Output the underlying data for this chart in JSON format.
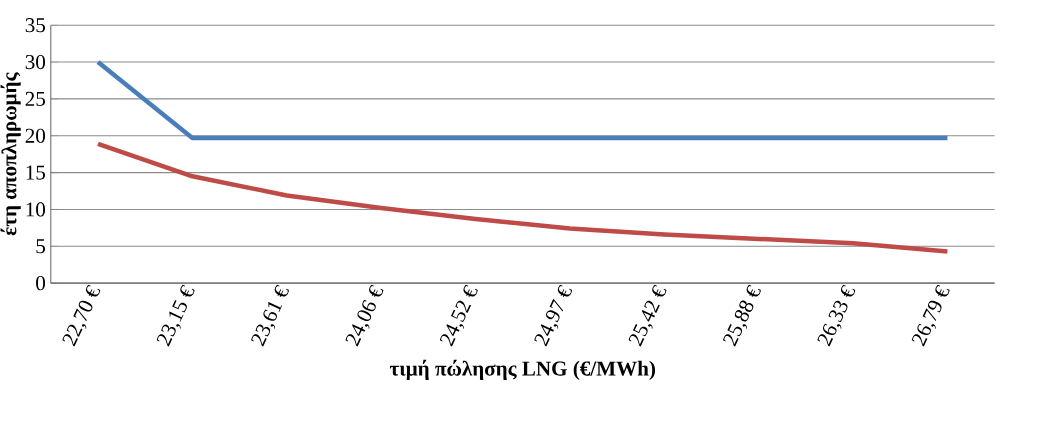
{
  "chart_data": {
    "type": "line",
    "xlabel": "τιμή πώλησης LNG (€/MWh)",
    "ylabel": "έτη αποπληρωμής",
    "categories": [
      "22,70 €",
      "23,15 €",
      "23,61 €",
      "24,06 €",
      "24,52 €",
      "24,97 €",
      "25,42 €",
      "25,88 €",
      "26,33 €",
      "26,79 €"
    ],
    "series": [
      {
        "color": "#4a7ebb",
        "values": [
          30,
          19.7,
          19.7,
          19.7,
          19.7,
          19.7,
          19.7,
          19.7,
          19.7,
          19.7
        ]
      },
      {
        "color": "#be4b48",
        "values": [
          18.9,
          14.5,
          11.9,
          10.2,
          8.7,
          7.4,
          6.6,
          6.0,
          5.4,
          4.3
        ]
      }
    ],
    "ylim": [
      0,
      35
    ],
    "yticks": [
      0,
      5,
      10,
      15,
      20,
      25,
      30,
      35
    ],
    "grid": "y",
    "marker": "none",
    "line_style": "solid"
  }
}
